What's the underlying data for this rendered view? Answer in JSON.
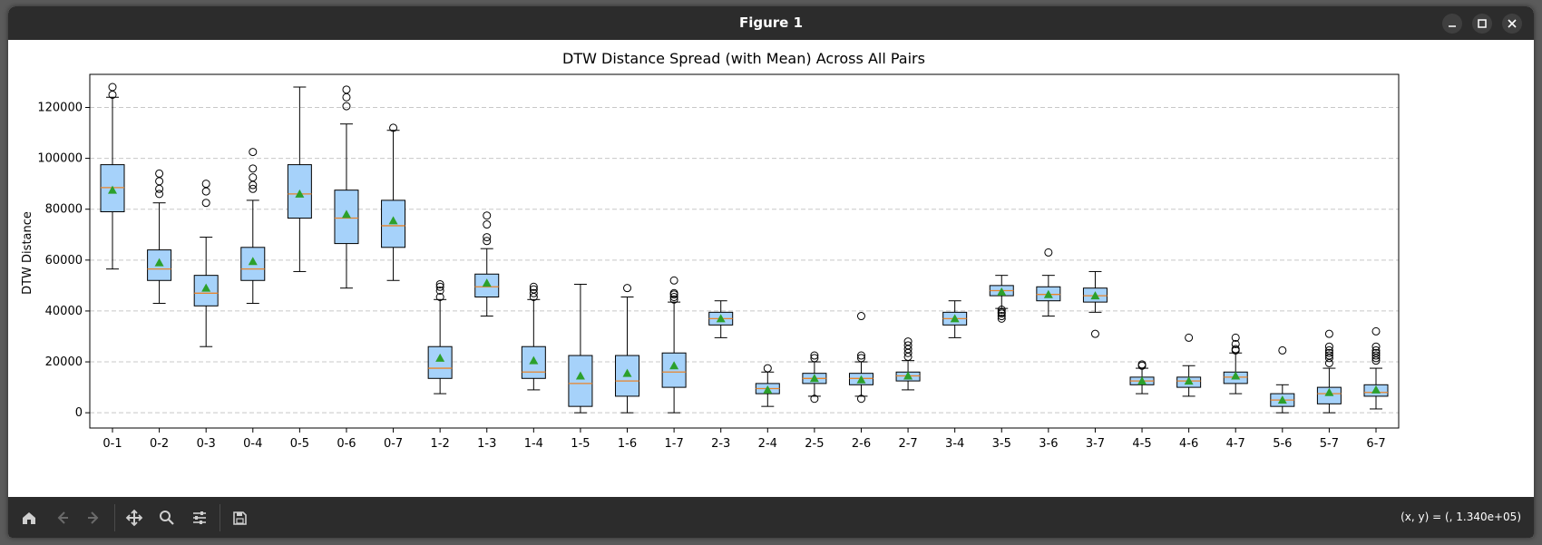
{
  "window": {
    "title": "Figure 1"
  },
  "window_controls": {
    "minimize": "minimize",
    "maximize": "maximize",
    "close": "close"
  },
  "toolbar": {
    "buttons": [
      {
        "name": "home",
        "icon": "home-icon"
      },
      {
        "name": "back",
        "icon": "arrow-left-icon"
      },
      {
        "name": "forward",
        "icon": "arrow-right-icon"
      },
      {
        "name": "pan",
        "icon": "move-icon"
      },
      {
        "name": "zoom",
        "icon": "search-icon"
      },
      {
        "name": "configure",
        "icon": "sliders-icon"
      },
      {
        "name": "save",
        "icon": "floppy-icon"
      }
    ],
    "coords": "(x, y) = (, 1.340e+05)"
  },
  "colors": {
    "box_fill": "#a6d2fa",
    "median": "#e8842b",
    "mean": "#2ca02c",
    "grid": "#c8c8c8"
  },
  "chart_data": {
    "type": "boxplot",
    "title": "DTW Distance Spread (with Mean) Across All Pairs",
    "xlabel": "",
    "ylabel": "DTW Distance",
    "ylim": [
      -6000,
      133000
    ],
    "yticks": [
      0,
      20000,
      40000,
      60000,
      80000,
      100000,
      120000
    ],
    "grid": "y-dashed",
    "categories": [
      "0-1",
      "0-2",
      "0-3",
      "0-4",
      "0-5",
      "0-6",
      "0-7",
      "1-2",
      "1-3",
      "1-4",
      "1-5",
      "1-6",
      "1-7",
      "2-3",
      "2-4",
      "2-5",
      "2-6",
      "2-7",
      "3-4",
      "3-5",
      "3-6",
      "3-7",
      "4-5",
      "4-6",
      "4-7",
      "5-6",
      "5-7",
      "6-7"
    ],
    "boxes": [
      {
        "whislo": 56500,
        "q1": 79000,
        "med": 88500,
        "q3": 97500,
        "whishi": 124000,
        "mean": 87500,
        "fliers": [
          125000,
          128000
        ]
      },
      {
        "whislo": 43000,
        "q1": 52000,
        "med": 56500,
        "q3": 64000,
        "whishi": 82500,
        "mean": 59000,
        "fliers": [
          86000,
          88000,
          91000,
          94000
        ]
      },
      {
        "whislo": 26000,
        "q1": 42000,
        "med": 47000,
        "q3": 54000,
        "whishi": 69000,
        "mean": 49000,
        "fliers": [
          82500,
          87000,
          90000
        ]
      },
      {
        "whislo": 43000,
        "q1": 52000,
        "med": 56500,
        "q3": 65000,
        "whishi": 83500,
        "mean": 59500,
        "fliers": [
          88000,
          89500,
          92500,
          96000,
          102500
        ]
      },
      {
        "whislo": 55500,
        "q1": 76500,
        "med": 86000,
        "q3": 97500,
        "whishi": 128000,
        "mean": 86000,
        "fliers": []
      },
      {
        "whislo": 49000,
        "q1": 66500,
        "med": 76500,
        "q3": 87500,
        "whishi": 113500,
        "mean": 78000,
        "fliers": [
          120500,
          124000,
          127000
        ]
      },
      {
        "whislo": 52000,
        "q1": 65000,
        "med": 73500,
        "q3": 83500,
        "whishi": 111000,
        "mean": 75500,
        "fliers": [
          112000
        ]
      },
      {
        "whislo": 7500,
        "q1": 13500,
        "med": 17500,
        "q3": 26000,
        "whishi": 44500,
        "mean": 21500,
        "fliers": [
          45500,
          48000,
          49500,
          50500
        ]
      },
      {
        "whislo": 38000,
        "q1": 45500,
        "med": 49500,
        "q3": 54500,
        "whishi": 64500,
        "mean": 51000,
        "fliers": [
          67500,
          69000,
          74000,
          77500
        ]
      },
      {
        "whislo": 9000,
        "q1": 13500,
        "med": 16000,
        "q3": 26000,
        "whishi": 44500,
        "mean": 20500,
        "fliers": [
          45500,
          47000,
          48500,
          49500
        ]
      },
      {
        "whislo": 0,
        "q1": 2500,
        "med": 11500,
        "q3": 22500,
        "whishi": 50500,
        "mean": 14500,
        "fliers": []
      },
      {
        "whislo": 0,
        "q1": 6500,
        "med": 12500,
        "q3": 22500,
        "whishi": 45500,
        "mean": 15500,
        "fliers": [
          49000
        ]
      },
      {
        "whislo": 0,
        "q1": 10000,
        "med": 16000,
        "q3": 23500,
        "whishi": 43500,
        "mean": 18500,
        "fliers": [
          44500,
          45500,
          46500,
          47000,
          52000
        ]
      },
      {
        "whislo": 29500,
        "q1": 34500,
        "med": 37000,
        "q3": 39500,
        "whishi": 44000,
        "mean": 37000,
        "fliers": []
      },
      {
        "whislo": 2500,
        "q1": 7500,
        "med": 9500,
        "q3": 11500,
        "whishi": 16000,
        "mean": 9000,
        "fliers": [
          17500
        ]
      },
      {
        "whislo": 6500,
        "q1": 11500,
        "med": 13500,
        "q3": 15500,
        "whishi": 20000,
        "mean": 13500,
        "fliers": [
          5500,
          21500,
          22500
        ]
      },
      {
        "whislo": 6500,
        "q1": 11000,
        "med": 13500,
        "q3": 15500,
        "whishi": 20000,
        "mean": 13000,
        "fliers": [
          5500,
          21500,
          22500,
          38000
        ]
      },
      {
        "whislo": 9000,
        "q1": 12500,
        "med": 14500,
        "q3": 16000,
        "whishi": 20500,
        "mean": 14500,
        "fliers": [
          22000,
          23500,
          25000,
          26500,
          28000
        ]
      },
      {
        "whislo": 29500,
        "q1": 34500,
        "med": 37000,
        "q3": 39500,
        "whishi": 44000,
        "mean": 37000,
        "fliers": []
      },
      {
        "whislo": 41000,
        "q1": 46000,
        "med": 48000,
        "q3": 50000,
        "whishi": 54000,
        "mean": 47500,
        "fliers": [
          37000,
          38000,
          39000,
          39500,
          40500
        ]
      },
      {
        "whislo": 38000,
        "q1": 44000,
        "med": 46500,
        "q3": 49500,
        "whishi": 54000,
        "mean": 46500,
        "fliers": [
          63000
        ]
      },
      {
        "whislo": 39500,
        "q1": 43500,
        "med": 46000,
        "q3": 49000,
        "whishi": 55500,
        "mean": 46000,
        "fliers": [
          31000
        ]
      },
      {
        "whislo": 7500,
        "q1": 11000,
        "med": 12500,
        "q3": 14000,
        "whishi": 17500,
        "mean": 12500,
        "fliers": [
          18500,
          19000
        ]
      },
      {
        "whislo": 6500,
        "q1": 10000,
        "med": 12500,
        "q3": 14000,
        "whishi": 18500,
        "mean": 12500,
        "fliers": [
          29500
        ]
      },
      {
        "whislo": 7500,
        "q1": 11500,
        "med": 14000,
        "q3": 16000,
        "whishi": 23500,
        "mean": 14500,
        "fliers": [
          24500,
          25000,
          27000,
          29500
        ]
      },
      {
        "whislo": 0,
        "q1": 2500,
        "med": 5000,
        "q3": 7500,
        "whishi": 11000,
        "mean": 5000,
        "fliers": [
          24500
        ]
      },
      {
        "whislo": 0,
        "q1": 3500,
        "med": 7500,
        "q3": 10000,
        "whishi": 17500,
        "mean": 8000,
        "fliers": [
          19500,
          21500,
          22500,
          23500,
          24500,
          26000,
          31000
        ]
      },
      {
        "whislo": 1500,
        "q1": 6500,
        "med": 8000,
        "q3": 11000,
        "whishi": 17500,
        "mean": 9000,
        "fliers": [
          20500,
          21500,
          22500,
          23500,
          24500,
          26000,
          32000
        ]
      }
    ]
  }
}
